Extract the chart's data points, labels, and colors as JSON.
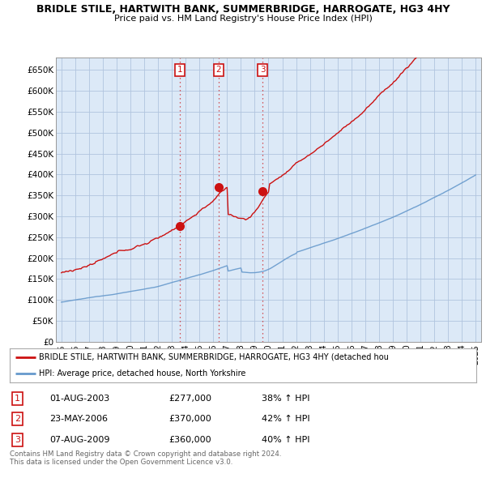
{
  "title": "BRIDLE STILE, HARTWITH BANK, SUMMERBRIDGE, HARROGATE, HG3 4HY",
  "subtitle": "Price paid vs. HM Land Registry's House Price Index (HPI)",
  "background_color": "#ffffff",
  "plot_bg_color": "#dce9f7",
  "grid_color": "#b0c4de",
  "sale_dates": [
    2003.58,
    2006.39,
    2009.58
  ],
  "sale_prices": [
    277000,
    370000,
    360000
  ],
  "sale_labels": [
    "1",
    "2",
    "3"
  ],
  "table_rows": [
    [
      "1",
      "01-AUG-2003",
      "£277,000",
      "38% ↑ HPI"
    ],
    [
      "2",
      "23-MAY-2006",
      "£370,000",
      "42% ↑ HPI"
    ],
    [
      "3",
      "07-AUG-2009",
      "£360,000",
      "40% ↑ HPI"
    ]
  ],
  "legend_line1": "BRIDLE STILE, HARTWITH BANK, SUMMERBRIDGE, HARROGATE, HG3 4HY (detached hou",
  "legend_line2": "HPI: Average price, detached house, North Yorkshire",
  "footer1": "Contains HM Land Registry data © Crown copyright and database right 2024.",
  "footer2": "This data is licensed under the Open Government Licence v3.0.",
  "ylim": [
    0,
    680000
  ],
  "yticks": [
    0,
    50000,
    100000,
    150000,
    200000,
    250000,
    300000,
    350000,
    400000,
    450000,
    500000,
    550000,
    600000,
    650000
  ],
  "red_line_color": "#cc1111",
  "blue_line_color": "#6699cc",
  "vline_color": "#cc1111",
  "xstart": 1995,
  "xend": 2025
}
